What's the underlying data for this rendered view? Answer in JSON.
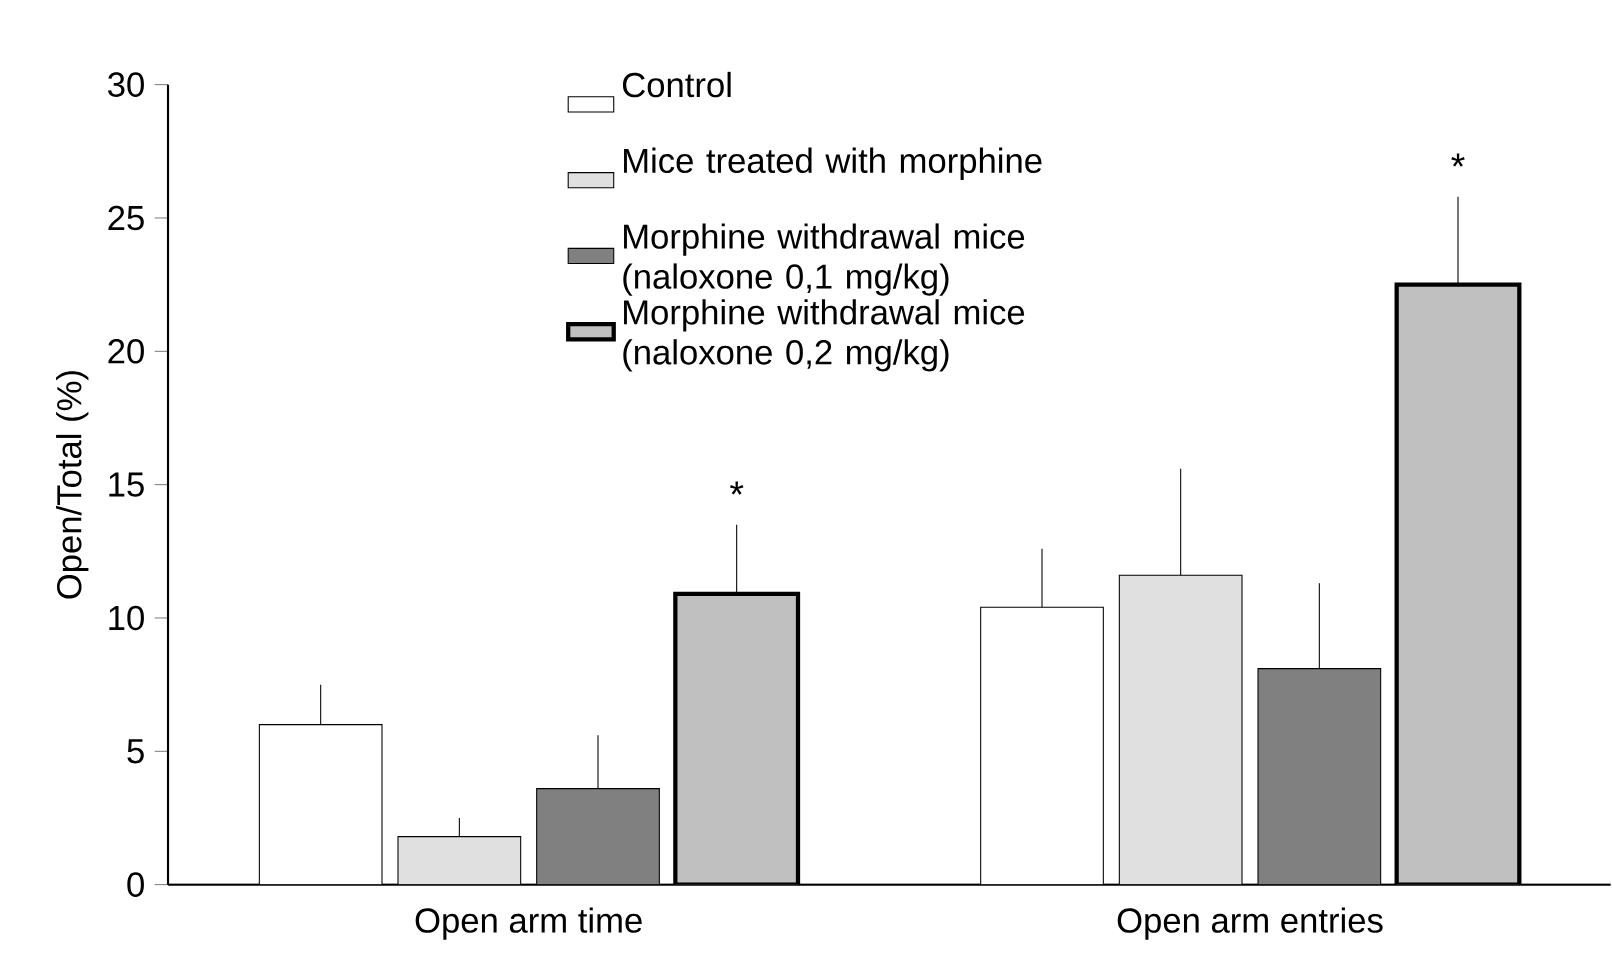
{
  "chart_data": {
    "type": "bar",
    "ylabel": "Open/Total (%)",
    "categories": [
      "Open arm time",
      "Open arm entries"
    ],
    "series": [
      {
        "name": "Control",
        "color": "#ffffff",
        "values": [
          6.0,
          10.4
        ],
        "errors": [
          [
            6.0,
            7.5
          ],
          [
            10.4,
            12.6
          ]
        ]
      },
      {
        "name": "Mice treated with morphine",
        "color": "#e0e0e0",
        "values": [
          1.8,
          11.6
        ],
        "errors": [
          [
            1.8,
            2.5
          ],
          [
            11.6,
            15.6
          ]
        ]
      },
      {
        "name": "Morphine withdrawal mice (naloxone 0,1 mg/kg)",
        "color": "#808080",
        "values": [
          3.6,
          8.1
        ],
        "errors": [
          [
            3.6,
            5.6
          ],
          [
            8.1,
            11.3
          ]
        ]
      },
      {
        "name": "Morphine withdrawal mice (naloxone 0,2 mg/kg)",
        "color": "#c0c0c0",
        "values": [
          10.9,
          22.5
        ],
        "errors": [
          [
            10.9,
            13.5
          ],
          [
            22.5,
            25.8
          ]
        ]
      }
    ],
    "ylim": [
      0,
      30
    ],
    "yticks": [
      0,
      5,
      10,
      15,
      20,
      25,
      30
    ],
    "annotations": [
      "*",
      "*"
    ],
    "legend": "top",
    "grid": false
  }
}
